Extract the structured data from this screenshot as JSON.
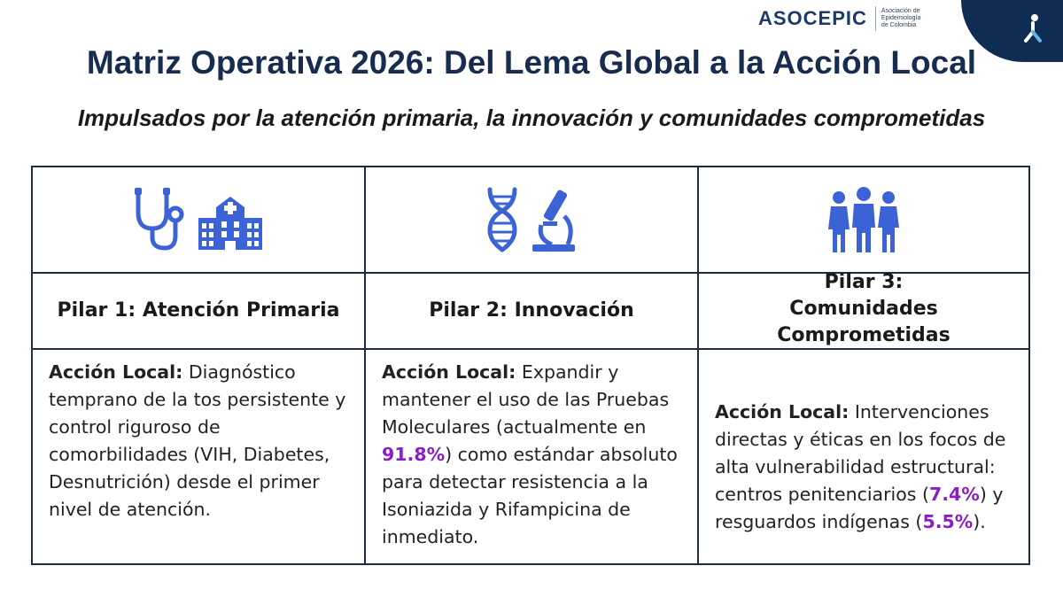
{
  "logo": {
    "wordmark": "ASOCEPIC",
    "subtitle_lines": [
      "Asociación de",
      "Epidemiología",
      "de Colombia"
    ]
  },
  "title": "Matriz Operativa 2026: Del Lema Global a la Acción Local",
  "subtitle": "Impulsados por la atención primaria, la innovación y comunidades comprometidas",
  "colors": {
    "title": "#172c4f",
    "icon_blue": "#3b63d6",
    "highlight_purple": "#8a1fc9",
    "corner_navy": "#0f2d52",
    "border": "#1b2d47"
  },
  "pillars": [
    {
      "icons": [
        "stethoscope-icon",
        "hospital-icon"
      ],
      "heading": "Pilar 1: Atención Primaria",
      "action_label": "Acción Local:",
      "parts": [
        " Diagnóstico temprano de la tos persistente y control riguroso de comorbilidades (VIH, Diabetes, Desnutrición) desde el primer nivel de atención."
      ]
    },
    {
      "icons": [
        "dna-icon",
        "microscope-icon"
      ],
      "heading": "Pilar 2: Innovación",
      "action_label": "Acción Local:",
      "parts": [
        " Expandir y mantener el uso de las Pruebas Moleculares (actualmente en ",
        "91.8%",
        ") como estándar absoluto para detectar resistencia a la Isoniazida y Rifampicina de inmediato."
      ]
    },
    {
      "icons": [
        "community-people-icon"
      ],
      "heading": "Pilar 3: Comunidades Comprometidas",
      "action_label": "Acción Local:",
      "parts": [
        " Intervenciones directas y éticas en los focos de alta vulnerabilidad estructural: centros penitenciarios (",
        "7.4%",
        ") y resguardos indígenas (",
        "5.5%",
        ")."
      ]
    }
  ]
}
